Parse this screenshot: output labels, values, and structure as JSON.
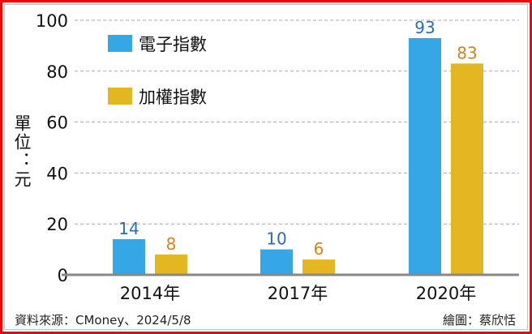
{
  "chart_data": {
    "type": "bar",
    "categories": [
      "2014年",
      "2017年",
      "2020年"
    ],
    "series": [
      {
        "name": "電子指數",
        "values": [
          14,
          10,
          93
        ],
        "color": "#35a6e6",
        "label_color": "#2b6cb8"
      },
      {
        "name": "加權指數",
        "values": [
          8,
          6,
          83
        ],
        "color": "#e4b622",
        "label_color": "#d9821a"
      }
    ],
    "ylabel": "單位：元",
    "ylim": [
      0,
      100
    ],
    "yticks": [
      0,
      20,
      40,
      60,
      80,
      100
    ],
    "grid": true,
    "legend_position": "top-left"
  },
  "footer": {
    "source": "資料來源：CMoney、2024/5/8",
    "credit": "繪圖：蔡欣恬"
  }
}
